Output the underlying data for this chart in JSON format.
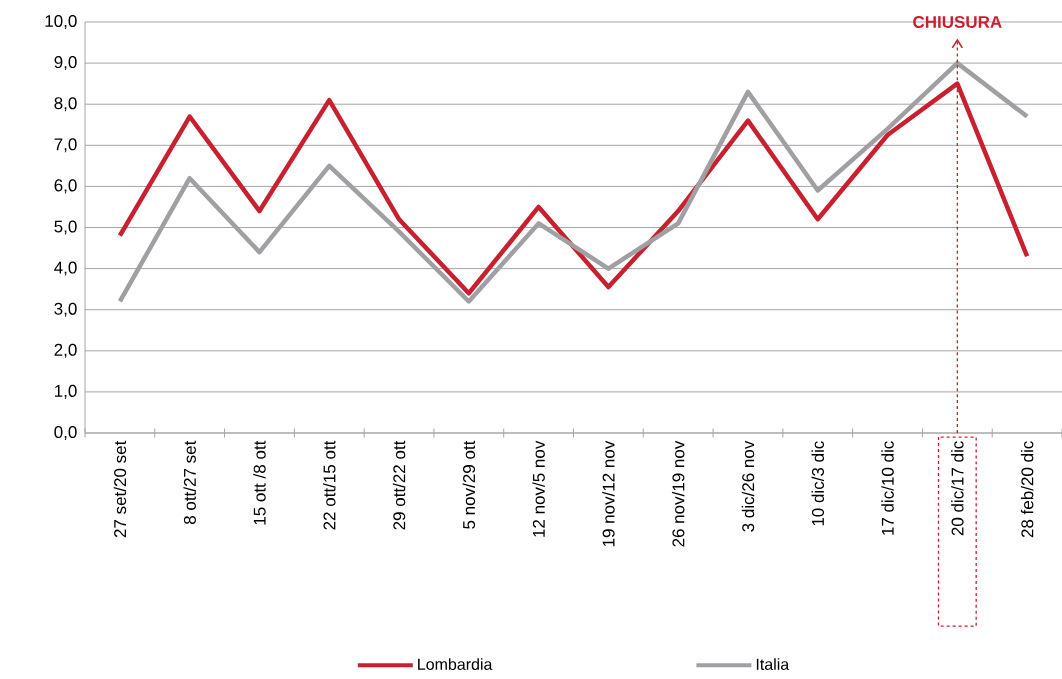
{
  "chart_data": {
    "type": "line",
    "categories": [
      "27 set/20 set",
      "8 ott/27 set",
      "15 ott /8 ott",
      "22 ott/15 ott",
      "29 ott/22 ott",
      "5 nov/29 ott",
      "12 nov/5 nov",
      "19 nov/12 nov",
      "26 nov/19 nov",
      "3 dic/26 nov",
      "10 dic/3 dic",
      "17 dic/10 dic",
      "20 dic/17 dic",
      "28 feb/20 dic"
    ],
    "series": [
      {
        "name": "Lombardia",
        "color": "#c8202f",
        "values": [
          4.8,
          7.7,
          5.4,
          8.1,
          5.2,
          3.4,
          5.5,
          3.55,
          5.4,
          7.6,
          5.2,
          7.25,
          8.5,
          4.3
        ]
      },
      {
        "name": "Italia",
        "color": "#a0a0a4",
        "values": [
          3.2,
          6.2,
          4.4,
          6.5,
          4.9,
          3.2,
          5.1,
          4.0,
          5.1,
          8.3,
          5.9,
          7.4,
          9.0,
          7.7
        ]
      }
    ],
    "ylim": [
      0,
      10
    ],
    "yticks": [
      {
        "value": 0,
        "label": "0,0"
      },
      {
        "value": 1,
        "label": "1,0"
      },
      {
        "value": 2,
        "label": "2,0"
      },
      {
        "value": 3,
        "label": "3,0"
      },
      {
        "value": 4,
        "label": "4,0"
      },
      {
        "value": 5,
        "label": "5,0"
      },
      {
        "value": 6,
        "label": "6,0"
      },
      {
        "value": 7,
        "label": "7,0"
      },
      {
        "value": 8,
        "label": "8,0"
      },
      {
        "value": 9,
        "label": "9,0"
      },
      {
        "value": 10,
        "label": "10,0"
      }
    ],
    "ref_lines": [
      {
        "axis": "x",
        "value": "20 dic/17 dic",
        "label": "CHIUSURA",
        "color": "#c8202f",
        "line_style": "dashed"
      }
    ],
    "grid": "y",
    "legend": "bottom"
  }
}
